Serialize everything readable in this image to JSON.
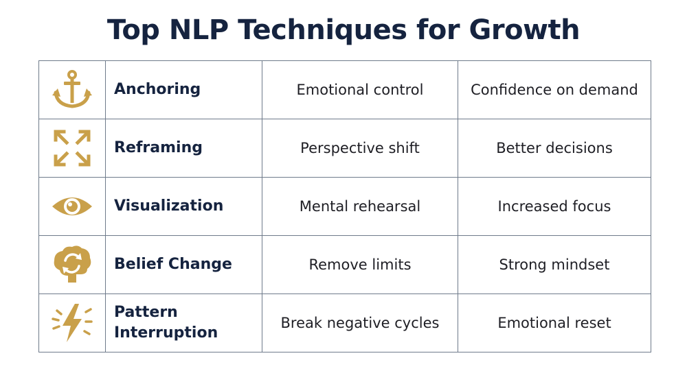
{
  "title": "Top NLP Techniques for Growth",
  "accent_color": "#c9a04a",
  "text_color": "#15233f",
  "rows": [
    {
      "icon": "anchor-icon",
      "technique": "Anchoring",
      "benefit": "Emotional control",
      "result": "Confidence on demand"
    },
    {
      "icon": "expand-arrows-icon",
      "technique": "Reframing",
      "benefit": "Perspective shift",
      "result": "Better decisions"
    },
    {
      "icon": "eye-icon",
      "technique": "Visualization",
      "benefit": "Mental rehearsal",
      "result": "Increased focus"
    },
    {
      "icon": "brain-refresh-icon",
      "technique": "Belief Change",
      "benefit": "Remove limits",
      "result": "Strong mindset"
    },
    {
      "icon": "lightning-icon",
      "technique": "Pattern Interruption",
      "benefit": "Break negative cycles",
      "result": "Emotional reset"
    }
  ]
}
